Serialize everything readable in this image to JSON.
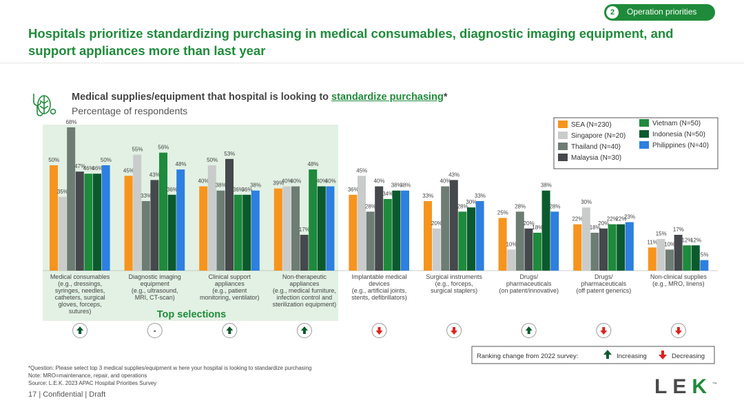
{
  "section": {
    "number": "2",
    "label": "Operation priorities"
  },
  "headline": "Hospitals prioritize standardizing purchasing in medical consumables, diagnostic imaging equipment, and support appliances more than last year",
  "chart_title_prefix": "Medical supplies/equipment that hospital is looking to ",
  "chart_title_highlight": "standardize purchasing",
  "chart_title_suffix": "*",
  "chart_subtitle": "Percentage of respondents",
  "top_selections_label": "Top selections",
  "chart_data": {
    "type": "bar",
    "ylim": [
      0,
      80
    ],
    "categories": [
      "Medical consumables (e.g., dressings, syringes, needles, catheters, surgical gloves, forceps, sutures)",
      "Diagnostic imaging equipment (e.g., ultrasound, MRI, CT-scan)",
      "Clinical support appliances (e.g., patient monitoring, ventilator)",
      "Non-therapeutic appliances (e.g., medical furniture, infection control and sterilization equipment)",
      "Implantable medical devices (e.g., artificial joints, stents, defibrillators)",
      "Surgical instruments (e.g., forceps, surgical staplers)",
      "Drugs/ pharmaceuticals (on patent/innovative)",
      "Drugs/ pharmaceuticals (off patent generics)",
      "Non-clinical supplies (e.g., MRO, linens)"
    ],
    "category_lines": [
      [
        "Medical consumables",
        "(e.g., dressings,",
        "syringes, needles,",
        "catheters, surgical",
        "gloves, forceps,",
        "sutures)"
      ],
      [
        "Diagnostic imaging",
        "equipment",
        "(e.g., ultrasound,",
        "MRI, CT-scan)"
      ],
      [
        "Clinical support",
        "appliances",
        "(e.g., patient",
        "monitoring, ventilator)"
      ],
      [
        "Non-therapeutic",
        "appliances",
        "(e.g., medical furniture,",
        "infection control and",
        "sterilization equipment)"
      ],
      [
        "Implantable medical",
        "devices",
        "(e.g., artificial joints,",
        "stents, defibrillators)"
      ],
      [
        "Surgical instruments",
        "(e.g., forceps,",
        "surgical staplers)"
      ],
      [
        "Drugs/",
        "pharmaceuticals",
        "(on patent/innovative)"
      ],
      [
        "Drugs/",
        "pharmaceuticals",
        "(off patent generics)"
      ],
      [
        "Non-clinical supplies",
        "(e.g., MRO, linens)"
      ]
    ],
    "series": [
      {
        "name": "SEA (N=230)",
        "color": "#f7941d",
        "values": [
          50,
          45,
          40,
          39,
          36,
          33,
          25,
          22,
          11
        ]
      },
      {
        "name": "Singapore (N=20)",
        "color": "#c9ccca",
        "values": [
          35,
          55,
          50,
          40,
          45,
          20,
          10,
          30,
          15
        ]
      },
      {
        "name": "Thailand (N=40)",
        "color": "#6e7d74",
        "values": [
          68,
          33,
          38,
          40,
          28,
          40,
          28,
          18,
          10
        ]
      },
      {
        "name": "Malaysia (N=30)",
        "color": "#45484c",
        "values": [
          47,
          43,
          53,
          17,
          40,
          43,
          20,
          20,
          17
        ]
      },
      {
        "name": "Vietnam (N=50)",
        "color": "#1e8a3c",
        "values": [
          46,
          56,
          36,
          48,
          34,
          28,
          18,
          22,
          12
        ]
      },
      {
        "name": "Indonesia (N=50)",
        "color": "#0b5a2e",
        "values": [
          46,
          36,
          36,
          40,
          38,
          30,
          38,
          22,
          12
        ]
      },
      {
        "name": "Philippines (N=40)",
        "color": "#2d7fe0",
        "values": [
          50,
          48,
          38,
          40,
          38,
          33,
          28,
          23,
          5
        ]
      }
    ],
    "value_suffix": "%",
    "highlighted_categories": 4,
    "ranking_change": [
      "up",
      "same",
      "up",
      "up",
      "down",
      "down",
      "up",
      "down",
      "down"
    ],
    "ranking_same_label": "-",
    "legend_placement": "top-right"
  },
  "ranking_legend": {
    "label": "Ranking change from 2022 survey:",
    "increasing": "Increasing",
    "decreasing": "Decreasing"
  },
  "notes": [
    "*Question: Please select top 3 medical supplies/equipment w here your hospital is looking to standardize purchasing",
    "Note: MRO=maintenance, repair, and operations",
    "Source: L.E.K. 2023 APAC Hospital Priorities Survey"
  ],
  "footer": {
    "page": "17",
    "text": "| Confidential | Draft"
  },
  "logo": {
    "text_a": "LE",
    "text_b": "K",
    "tm": "™"
  }
}
